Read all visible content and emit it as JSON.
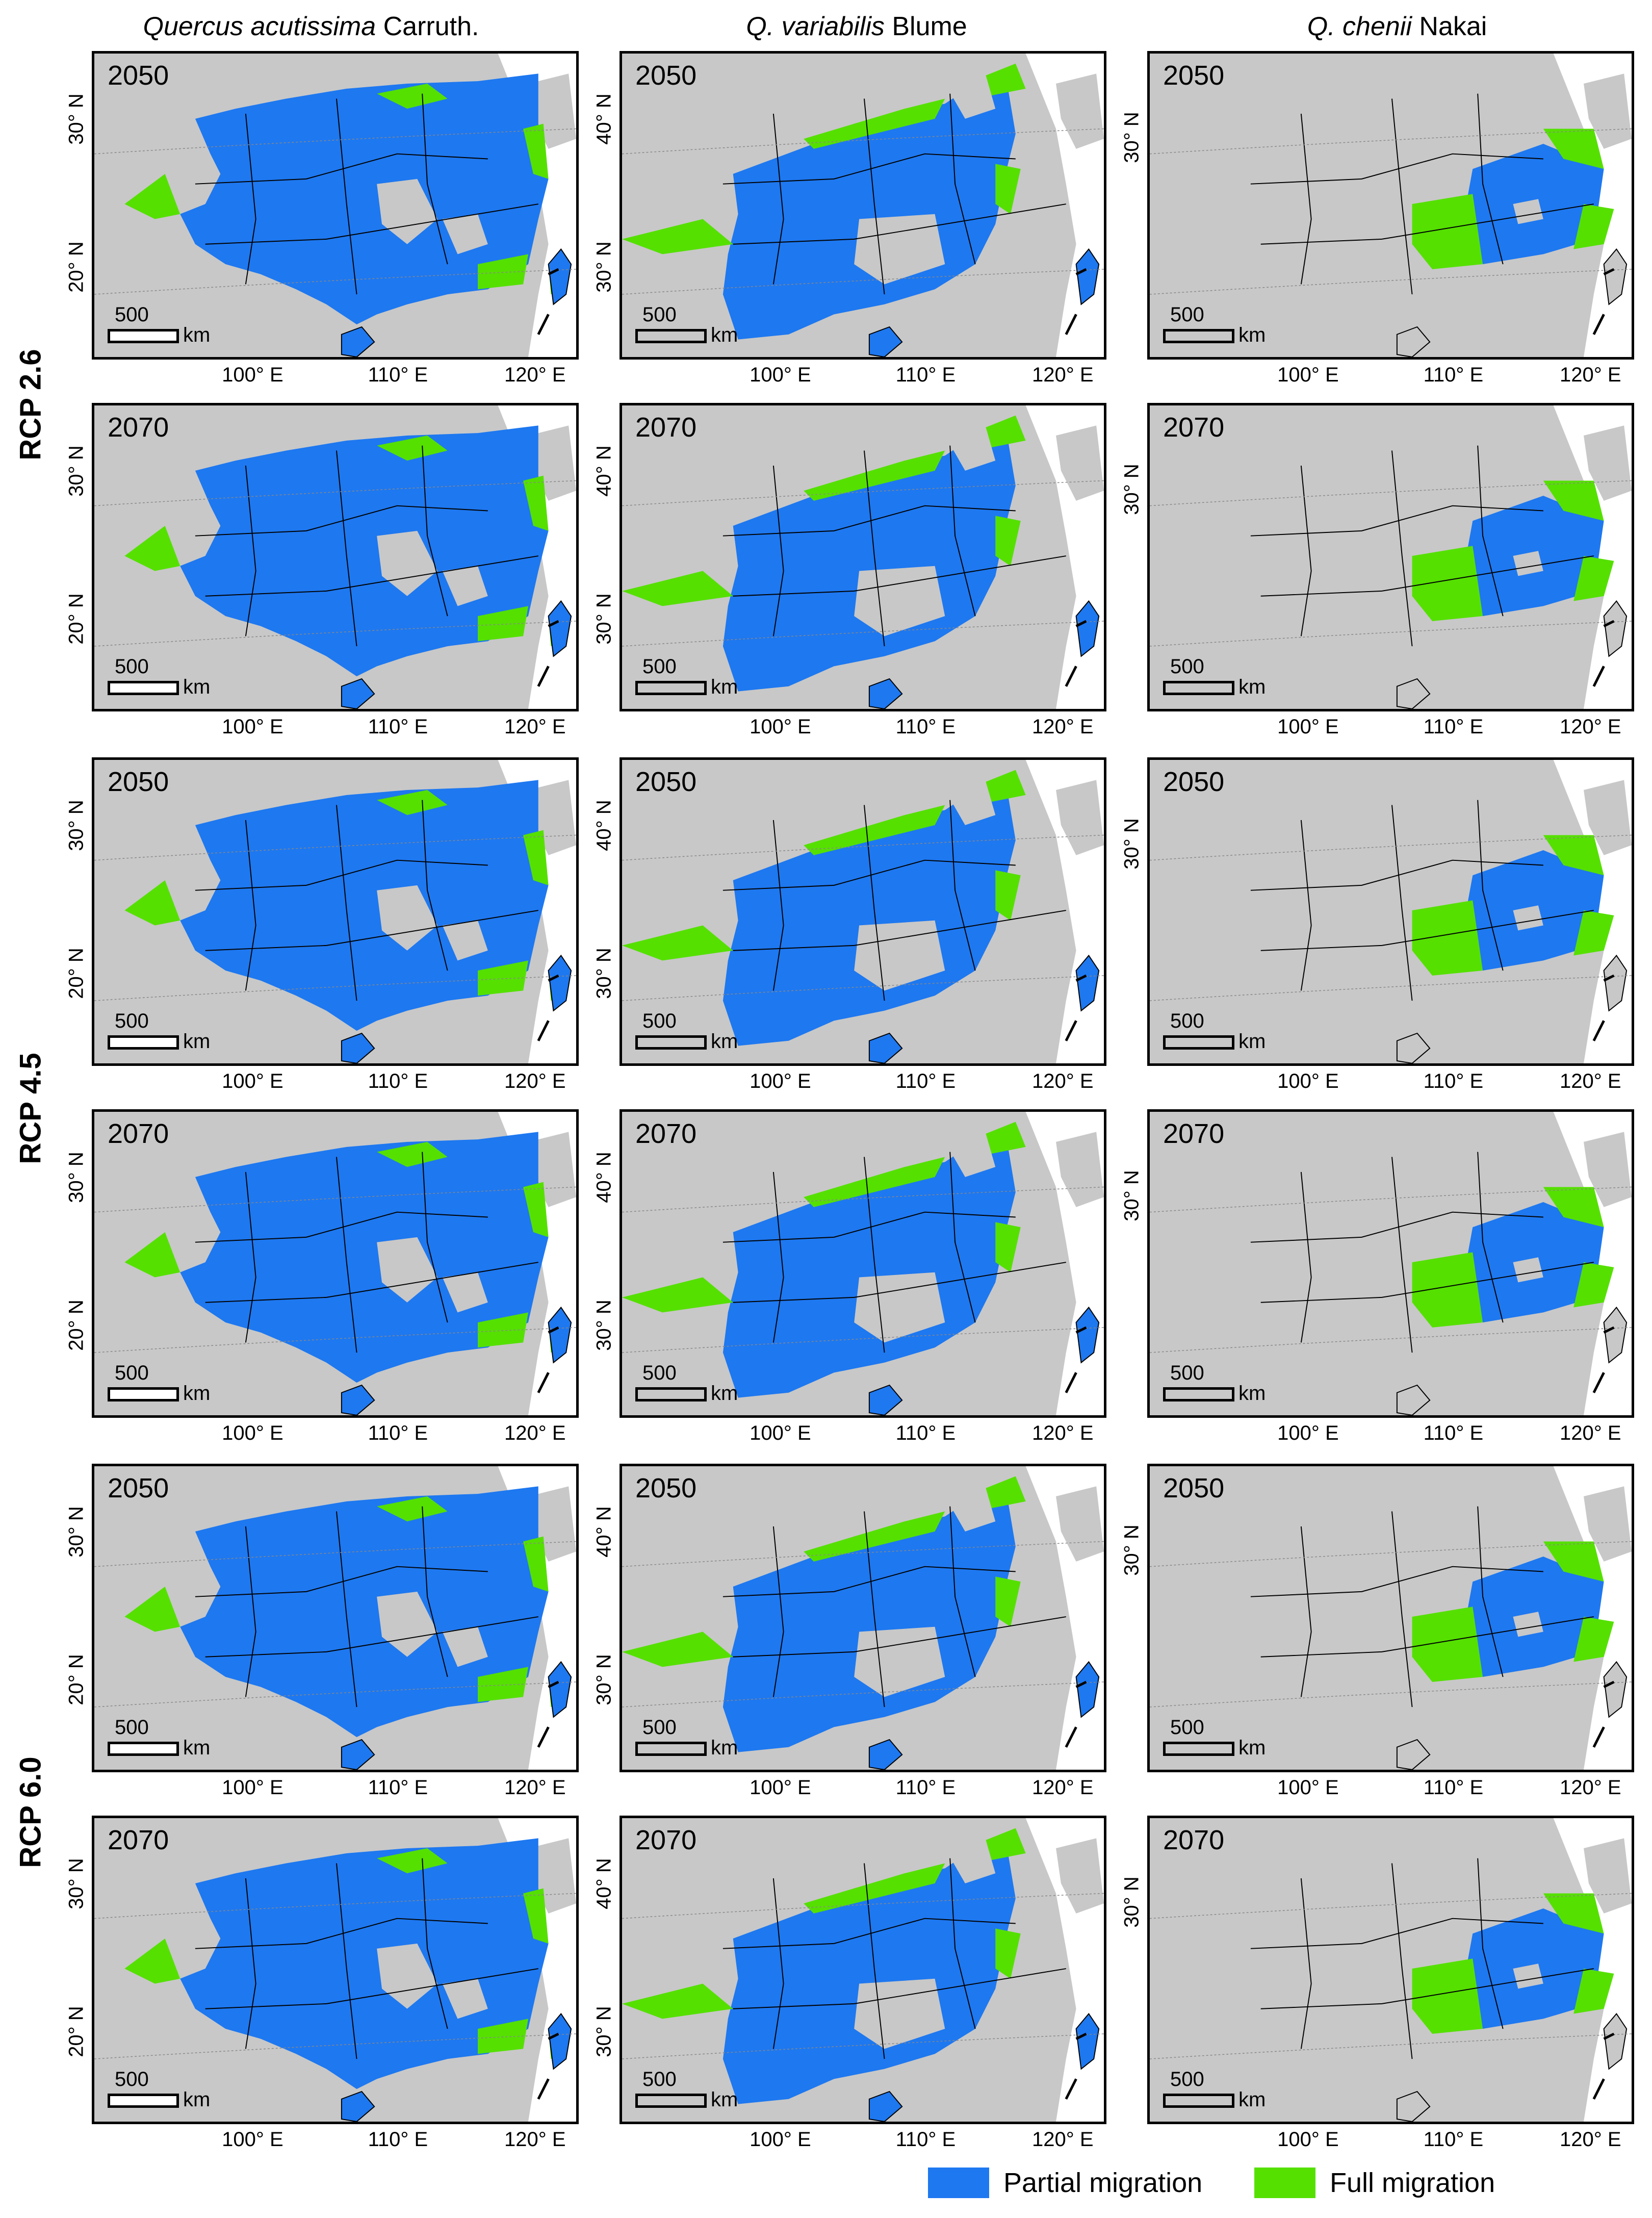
{
  "columns": [
    {
      "italic": "Quercus acutissima",
      "rest": " Carruth."
    },
    {
      "italic": "Q. variabilis",
      "rest": " Blume"
    },
    {
      "italic": "Q. chenii",
      "rest": " Nakai"
    }
  ],
  "scenarios": [
    "RCP 2.6",
    "RCP 4.5",
    "RCP 6.0"
  ],
  "years": [
    "2050",
    "2070",
    "2050",
    "2070",
    "2050",
    "2070"
  ],
  "scale_bar": {
    "value": "500",
    "unit": "km"
  },
  "lon_ticks": [
    "100° E",
    "110° E",
    "120° E"
  ],
  "lat_ticks": {
    "acutissima": [
      "30° N",
      "20° N"
    ],
    "variabilis": [
      "40° N",
      "30° N"
    ],
    "chenii": [
      "30° N"
    ]
  },
  "legend": [
    {
      "label": "Partial migration",
      "color": "#1E78F0"
    },
    {
      "label": "Full migration",
      "color": "#55E000"
    }
  ],
  "colors": {
    "land": "#C8C8C8",
    "partial": "#1E78F0",
    "full": "#55E000",
    "boundary": "#000000"
  }
}
